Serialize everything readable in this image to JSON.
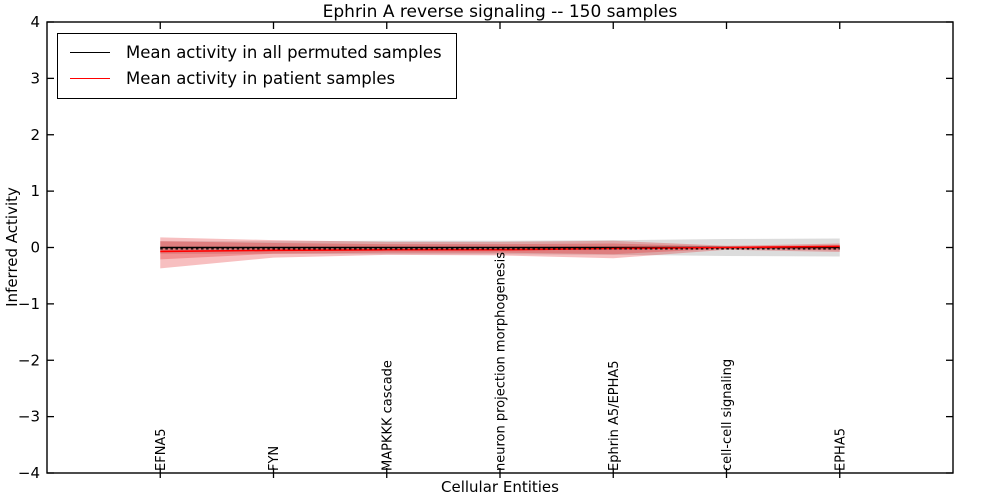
{
  "chart_data": {
    "type": "line",
    "title": "Ephrin A  reverse signaling -- 150 samples",
    "xlabel": "Cellular Entities",
    "ylabel": "Inferred Activity",
    "ylim": [
      -4,
      4
    ],
    "x_units": [
      0,
      8
    ],
    "grid": false,
    "legend_position": "upper-left",
    "frame_color": "#000000",
    "ytick_values": [
      -4,
      -3,
      -2,
      -1,
      0,
      1,
      2,
      3,
      4
    ],
    "ytick_labels": [
      "−4",
      "−3",
      "−2",
      "−1",
      "0",
      "1",
      "2",
      "3",
      "4"
    ],
    "categories": [
      "EFNA5",
      "FYN",
      "MAPKKK cascade",
      "neuron projection morphogenesis",
      "Ephrin A5/EPHA5",
      "cell-cell signaling",
      "EPHA5"
    ],
    "category_positions": [
      1,
      2,
      3,
      4,
      5,
      6,
      7
    ],
    "bands": [
      {
        "name": "permuted-samples-std-band",
        "color": "#808080",
        "opacity": 0.28,
        "upper": [
          0.11,
          0.11,
          0.12,
          0.12,
          0.13,
          0.15,
          0.16
        ],
        "lower": [
          -0.11,
          -0.11,
          -0.12,
          -0.12,
          -0.13,
          -0.15,
          -0.16
        ]
      },
      {
        "name": "patient-samples-outer-band",
        "color": "#e41a1c",
        "opacity": 0.28,
        "upper": [
          0.18,
          0.13,
          0.1,
          0.1,
          0.12,
          0.03,
          0.07
        ],
        "lower": [
          -0.37,
          -0.18,
          -0.13,
          -0.14,
          -0.19,
          -0.04,
          -0.08
        ]
      },
      {
        "name": "patient-samples-inner-band",
        "color": "#e41a1c",
        "opacity": 0.28,
        "upper": [
          0.11,
          0.08,
          0.06,
          0.06,
          0.07,
          0.015,
          0.045
        ],
        "lower": [
          -0.21,
          -0.11,
          -0.09,
          -0.09,
          -0.12,
          -0.02,
          -0.05
        ]
      }
    ],
    "series": [
      {
        "name": "Mean activity in all permuted samples",
        "color": "#000000",
        "style": "solid",
        "width": 1.4,
        "values": [
          0,
          0,
          0,
          0,
          0,
          0,
          0
        ]
      },
      {
        "name": "Mean activity in patient samples",
        "color": "#ff0000",
        "style": "solid",
        "width": 1.6,
        "values": [
          -0.07,
          -0.05,
          -0.04,
          -0.04,
          -0.02,
          0.0,
          0.02
        ]
      }
    ],
    "aux_lines": [
      {
        "name": "permuted-samples-dashed-line",
        "color": "#000000",
        "dash": [
          2.5,
          2.6
        ],
        "width": 1.3,
        "values": [
          -0.025,
          -0.025,
          -0.025,
          -0.025,
          -0.025,
          -0.025,
          -0.025
        ]
      }
    ]
  },
  "legend": {
    "entries": [
      {
        "label": "Mean activity in all permuted samples",
        "color": "#000000"
      },
      {
        "label": "Mean activity in patient samples",
        "color": "#ff0000"
      }
    ]
  }
}
